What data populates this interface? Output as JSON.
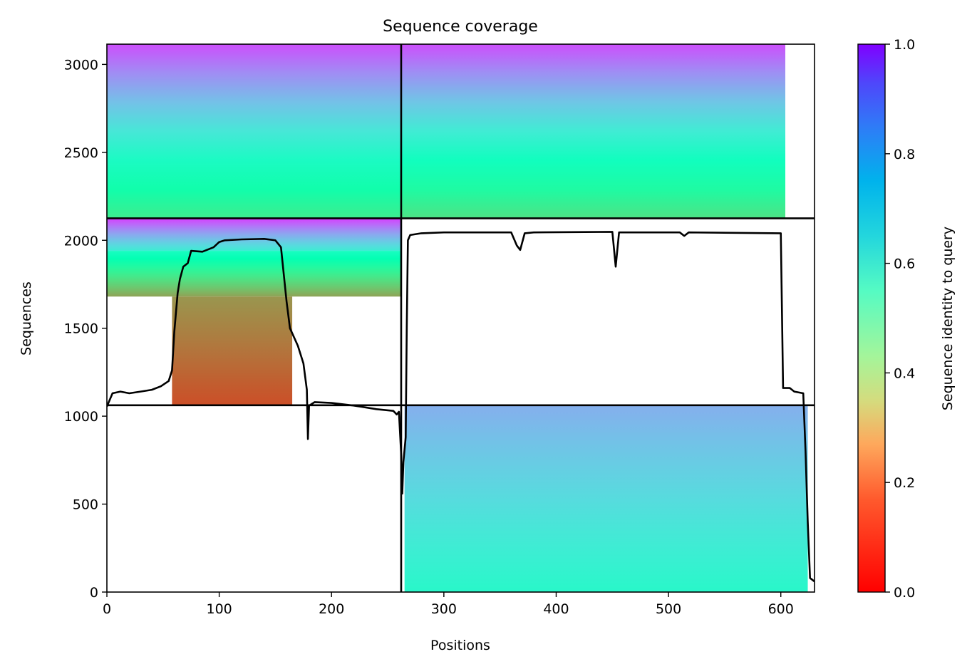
{
  "chart_data": {
    "type": "heatmap",
    "title": "Sequence coverage",
    "xlabel": "Positions",
    "ylabel": "Sequences",
    "xlim": [
      0,
      630
    ],
    "ylim": [
      0,
      3115
    ],
    "xticks": [
      0,
      100,
      200,
      300,
      400,
      500,
      600
    ],
    "yticks": [
      0,
      500,
      1000,
      1500,
      2000,
      2500,
      3000
    ],
    "colorbar": {
      "label": "Sequence identity to query",
      "range": [
        0,
        1
      ],
      "ticks": [
        "0.0",
        "0.2",
        "0.4",
        "0.6",
        "0.8",
        "1.0"
      ],
      "colormap": "rainbow_r"
    },
    "divisions": {
      "x": 262,
      "y": [
        1062,
        2125
      ]
    },
    "blocks": [
      {
        "x0": 0,
        "x1": 262,
        "y0": 2125,
        "y1": 3115,
        "identity_top": 0.9,
        "identity_bottom": 0.38
      },
      {
        "x0": 262,
        "x1": 604,
        "y0": 2125,
        "y1": 3115,
        "identity_top": 0.9,
        "identity_bottom": 0.35
      },
      {
        "x0": 0,
        "x1": 262,
        "y0": 1940,
        "y1": 2125,
        "identity_top": 0.92,
        "identity_bottom": 0.62
      },
      {
        "x0": 0,
        "x1": 262,
        "y0": 1680,
        "y1": 1940,
        "identity_top": 0.55,
        "identity_bottom": 0.22
      },
      {
        "x0": 58,
        "x1": 165,
        "y0": 1062,
        "y1": 1680,
        "identity_top": 0.2,
        "identity_bottom": 0.1
      },
      {
        "x0": 265,
        "x1": 624,
        "y0": 0,
        "y1": 1062,
        "identity_top": 0.76,
        "identity_bottom": 0.58
      }
    ],
    "coverage_line": [
      [
        0,
        1055
      ],
      [
        5,
        1130
      ],
      [
        12,
        1140
      ],
      [
        20,
        1130
      ],
      [
        30,
        1140
      ],
      [
        40,
        1150
      ],
      [
        48,
        1170
      ],
      [
        55,
        1200
      ],
      [
        58,
        1260
      ],
      [
        60,
        1480
      ],
      [
        63,
        1700
      ],
      [
        65,
        1780
      ],
      [
        68,
        1850
      ],
      [
        72,
        1870
      ],
      [
        75,
        1940
      ],
      [
        85,
        1935
      ],
      [
        95,
        1960
      ],
      [
        100,
        1990
      ],
      [
        105,
        2000
      ],
      [
        120,
        2005
      ],
      [
        140,
        2008
      ],
      [
        150,
        2000
      ],
      [
        155,
        1960
      ],
      [
        160,
        1650
      ],
      [
        163,
        1500
      ],
      [
        170,
        1400
      ],
      [
        175,
        1300
      ],
      [
        178,
        1150
      ],
      [
        179,
        870
      ],
      [
        180,
        1060
      ],
      [
        185,
        1080
      ],
      [
        200,
        1075
      ],
      [
        220,
        1060
      ],
      [
        240,
        1040
      ],
      [
        255,
        1030
      ],
      [
        258,
        1010
      ],
      [
        260,
        1025
      ],
      [
        262,
        780
      ],
      [
        263,
        560
      ],
      [
        264,
        740
      ],
      [
        266,
        880
      ],
      [
        267,
        1500
      ],
      [
        268,
        2000
      ],
      [
        270,
        2030
      ],
      [
        280,
        2040
      ],
      [
        300,
        2045
      ],
      [
        360,
        2045
      ],
      [
        365,
        1970
      ],
      [
        368,
        1945
      ],
      [
        372,
        2040
      ],
      [
        380,
        2045
      ],
      [
        450,
        2048
      ],
      [
        453,
        1850
      ],
      [
        456,
        2045
      ],
      [
        510,
        2045
      ],
      [
        514,
        2025
      ],
      [
        518,
        2045
      ],
      [
        600,
        2040
      ],
      [
        602,
        1160
      ],
      [
        608,
        1160
      ],
      [
        612,
        1140
      ],
      [
        620,
        1130
      ],
      [
        622,
        800
      ],
      [
        624,
        400
      ],
      [
        626,
        80
      ],
      [
        630,
        60
      ]
    ]
  }
}
